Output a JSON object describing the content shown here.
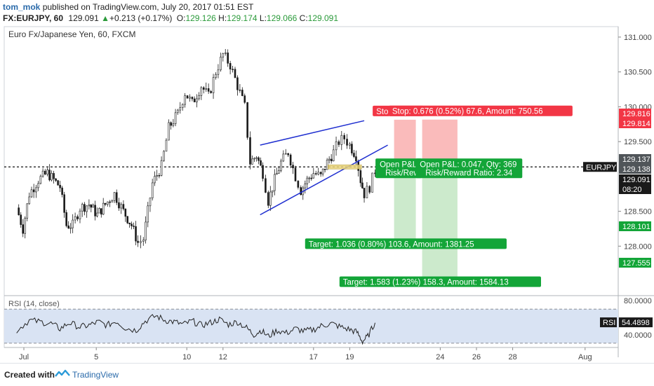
{
  "header": {
    "author": "tom_mok",
    "published": "published on TradingView.com, July 20, 2017 01:51 EST",
    "symbol": "FX:EURJPY, 60",
    "last": "129.091",
    "change": "+0.213 (+0.17%)",
    "o_label": "O:",
    "o": "129.126",
    "h_label": "H:",
    "h": "129.174",
    "l_label": "L:",
    "l": "129.066",
    "c_label": "C:",
    "c": "129.091"
  },
  "footer": {
    "created": "Created with",
    "brand": "TradingView"
  },
  "colors": {
    "candle": "#1a1a1a",
    "wedge": "#1f2fd0",
    "stop": "#f23645",
    "target": "#13a538",
    "stop_zone": "#f9b4b4",
    "target_zone": "#c6e8c6",
    "rsi_band": "#d9e3f3",
    "rsi_line": "#222222"
  },
  "chart_data": {
    "type": "candlestick",
    "title": "Euro Fx/Japanese Yen, 60, FXCM",
    "ylim": [
      127.3,
      131.15
    ],
    "y_ticks": [
      "131.000",
      "130.500",
      "130.000",
      "129.500",
      "128.500",
      "128.000"
    ],
    "x_ticks": [
      {
        "label": "Jul",
        "d": 1
      },
      {
        "label": "5",
        "d": 5
      },
      {
        "label": "10",
        "d": 10
      },
      {
        "label": "12",
        "d": 12
      },
      {
        "label": "17",
        "d": 17
      },
      {
        "label": "19",
        "d": 19
      },
      {
        "label": "24",
        "d": 24
      },
      {
        "label": "26",
        "d": 26
      },
      {
        "label": "28",
        "d": 28
      },
      {
        "label": "Aug",
        "d": 32
      }
    ],
    "price_path": [
      [
        0.6,
        128.55
      ],
      [
        0.95,
        128.25
      ],
      [
        1.3,
        128.75
      ],
      [
        1.8,
        128.95
      ],
      [
        2.3,
        129.05
      ],
      [
        2.65,
        128.95
      ],
      [
        3.0,
        128.85
      ],
      [
        3.35,
        128.3
      ],
      [
        3.7,
        128.3
      ],
      [
        4.1,
        128.55
      ],
      [
        4.6,
        128.6
      ],
      [
        5.05,
        128.45
      ],
      [
        5.5,
        128.6
      ],
      [
        6.0,
        128.75
      ],
      [
        6.5,
        128.5
      ],
      [
        6.95,
        128.3
      ],
      [
        7.3,
        128.05
      ],
      [
        7.6,
        128.1
      ],
      [
        8.1,
        128.9
      ],
      [
        8.6,
        129.15
      ],
      [
        9.0,
        129.7
      ],
      [
        9.5,
        129.9
      ],
      [
        9.9,
        130.2
      ],
      [
        10.3,
        130.05
      ],
      [
        10.8,
        130.3
      ],
      [
        11.2,
        130.15
      ],
      [
        11.6,
        130.5
      ],
      [
        12.0,
        130.75
      ],
      [
        12.4,
        130.6
      ],
      [
        12.8,
        130.3
      ],
      [
        13.2,
        130.0
      ],
      [
        13.5,
        129.2
      ],
      [
        13.85,
        129.3
      ],
      [
        14.2,
        129.05
      ],
      [
        14.5,
        128.65
      ],
      [
        14.85,
        128.95
      ],
      [
        15.2,
        129.2
      ],
      [
        15.6,
        129.35
      ],
      [
        16.0,
        129.0
      ],
      [
        16.3,
        128.8
      ],
      [
        16.65,
        128.95
      ],
      [
        17.0,
        129.05
      ],
      [
        17.4,
        129.0
      ],
      [
        17.75,
        129.2
      ],
      [
        18.1,
        129.35
      ],
      [
        18.4,
        129.5
      ],
      [
        18.7,
        129.55
      ],
      [
        19.0,
        129.45
      ],
      [
        19.35,
        129.3
      ],
      [
        19.6,
        128.95
      ],
      [
        19.8,
        128.75
      ],
      [
        20.1,
        128.85
      ],
      [
        20.4,
        129.09
      ]
    ],
    "reference_line": {
      "value": 129.137,
      "label": "EURJPY"
    },
    "price_labels": [
      {
        "text": "129.816",
        "v": 129.816,
        "color": "#f23645"
      },
      {
        "text": "129.814",
        "v": 129.814,
        "color": "#f23645"
      },
      {
        "text": "129.137",
        "v": 129.137,
        "color": "#505559"
      },
      {
        "text": "129.138",
        "v": 129.138,
        "color": "#505559"
      },
      {
        "text": "129.091",
        "v": 129.091,
        "color": "#1a1a1a"
      },
      {
        "text": "08:20",
        "v": 129.091,
        "color": "#1a1a1a"
      },
      {
        "text": "128.101",
        "v": 128.101,
        "color": "#13a538"
      },
      {
        "text": "127.555",
        "v": 127.555,
        "color": "#13a538"
      }
    ],
    "wedge": [
      {
        "d1": 14.05,
        "v1": 129.45,
        "d2": 19.8,
        "v2": 129.8
      },
      {
        "d1": 14.05,
        "v1": 128.45,
        "d2": 21.1,
        "v2": 129.45
      }
    ],
    "positions": [
      {
        "entry": 129.137,
        "d_start": 19.75,
        "zone_d1": 21.45,
        "zone_d2": 22.65,
        "stop": 129.814,
        "target": 128.101,
        "entry_text": "Open P&L:",
        "ratio_text": "Risk/Rew",
        "stop_text": "Stop: 0.67",
        "target_text": "Target: 1.036 (0.80%) 103.6, Amount: 1381.25"
      },
      {
        "entry": 129.137,
        "d_start": 19.75,
        "zone_d1": 23.0,
        "zone_d2": 24.95,
        "stop": 129.816,
        "target": 127.555,
        "entry_text": "Open P&L: 0.047, Qty: 369",
        "ratio_text": "Risk/Reward Ratio: 2.34",
        "stop_text": "Stop: 0.676 (0.52%) 67.6, Amount: 750.56",
        "target_text": "Target: 1.583 (1.23%) 158.3, Amount: 1584.13"
      }
    ],
    "rsi": {
      "label": "RSI (14, close)",
      "value_label": "RSI",
      "value": "54.4898",
      "ticks": [
        "80.0000",
        "40.0000"
      ],
      "upper": 70,
      "lower": 30,
      "ylim": [
        25,
        85
      ],
      "series": [
        [
          0.6,
          45
        ],
        [
          1.3,
          57
        ],
        [
          1.9,
          55
        ],
        [
          2.5,
          53
        ],
        [
          3.0,
          47
        ],
        [
          3.5,
          54
        ],
        [
          4.1,
          49
        ],
        [
          4.6,
          51
        ],
        [
          5.1,
          55
        ],
        [
          5.6,
          51
        ],
        [
          6.1,
          56
        ],
        [
          6.6,
          48
        ],
        [
          7.2,
          45
        ],
        [
          7.7,
          56
        ],
        [
          8.3,
          62
        ],
        [
          8.8,
          57
        ],
        [
          9.3,
          55
        ],
        [
          9.8,
          52
        ],
        [
          10.3,
          56
        ],
        [
          10.8,
          51
        ],
        [
          11.3,
          54
        ],
        [
          11.8,
          58
        ],
        [
          12.3,
          52
        ],
        [
          12.8,
          55
        ],
        [
          13.3,
          48
        ],
        [
          13.7,
          40
        ],
        [
          14.1,
          45
        ],
        [
          14.5,
          38
        ],
        [
          15.0,
          45
        ],
        [
          15.5,
          42
        ],
        [
          16.0,
          47
        ],
        [
          16.5,
          44
        ],
        [
          17.0,
          46
        ],
        [
          17.5,
          51
        ],
        [
          18.0,
          53
        ],
        [
          18.5,
          49
        ],
        [
          19.0,
          46
        ],
        [
          19.4,
          43
        ],
        [
          19.7,
          32
        ],
        [
          20.0,
          38
        ],
        [
          20.4,
          54
        ]
      ]
    }
  }
}
